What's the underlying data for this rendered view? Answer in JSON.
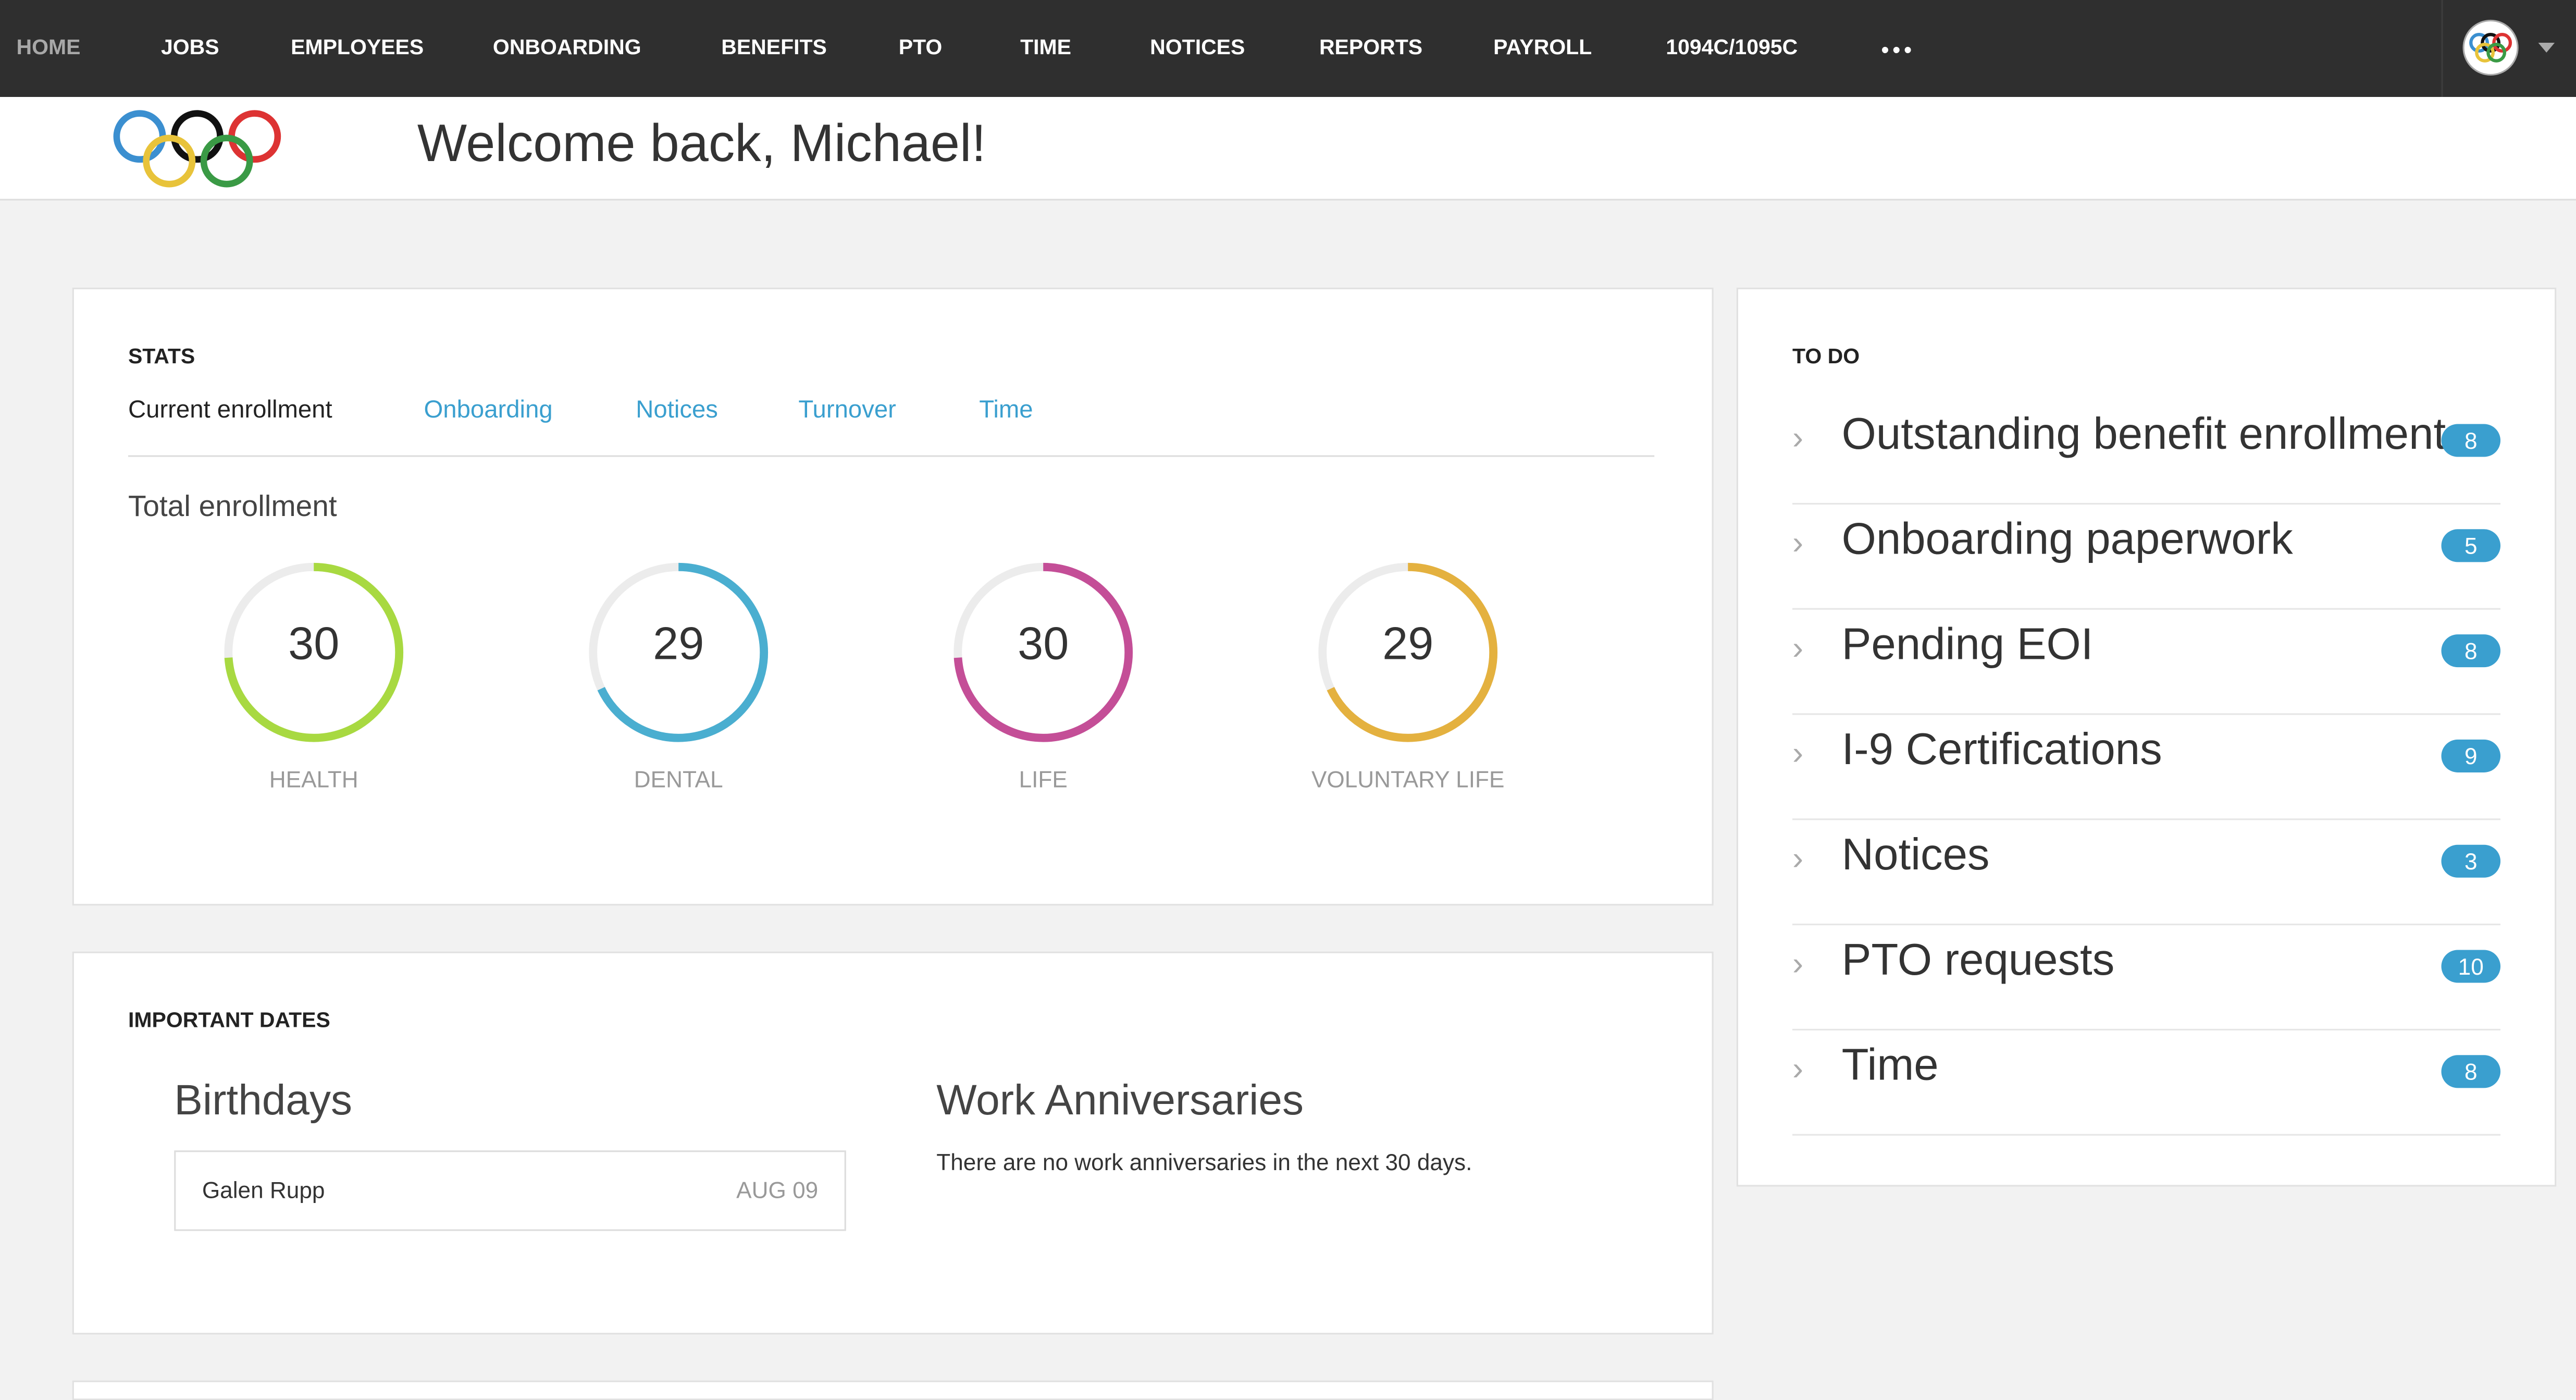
{
  "nav": {
    "items": [
      "HOME",
      "JOBS",
      "EMPLOYEES",
      "ONBOARDING",
      "BENEFITS",
      "PTO",
      "TIME",
      "NOTICES",
      "REPORTS",
      "PAYROLL",
      "1094C/1095C"
    ],
    "more": "•••"
  },
  "header": {
    "welcome": "Welcome back, Michael!"
  },
  "stats": {
    "title": "STATS",
    "tabs": [
      "Current enrollment",
      "Onboarding",
      "Notices",
      "Turnover",
      "Time"
    ],
    "active_tab": "Current enrollment",
    "subtitle": "Total enrollment",
    "donuts": [
      {
        "value": "30",
        "label": "HEALTH",
        "fill_percent": 74,
        "color": "#a8d941"
      },
      {
        "value": "29",
        "label": "DENTAL",
        "fill_percent": 68,
        "color": "#4aaed0"
      },
      {
        "value": "30",
        "label": "LIFE",
        "fill_percent": 74,
        "color": "#c44e97"
      },
      {
        "value": "29",
        "label": "VOLUNTARY LIFE",
        "fill_percent": 68,
        "color": "#e4b13f"
      }
    ]
  },
  "dates": {
    "title": "IMPORTANT DATES",
    "birthdays_title": "Birthdays",
    "birthdays": [
      {
        "name": "Galen Rupp",
        "date": "AUG 09"
      }
    ],
    "anniv_title": "Work Anniversaries",
    "anniv_empty": "There are no work anniversaries in the next 30 days."
  },
  "todo": {
    "title": "TO DO",
    "items": [
      {
        "label": "Outstanding benefit enrollment",
        "count": "8"
      },
      {
        "label": "Onboarding paperwork",
        "count": "5"
      },
      {
        "label": "Pending EOI",
        "count": "8"
      },
      {
        "label": "I-9 Certifications",
        "count": "9"
      },
      {
        "label": "Notices",
        "count": "3"
      },
      {
        "label": "PTO requests",
        "count": "10"
      },
      {
        "label": "Time",
        "count": "8"
      }
    ]
  },
  "colors": {
    "accent": "#3a9fcf",
    "nav_bg": "#2f2f2f"
  }
}
